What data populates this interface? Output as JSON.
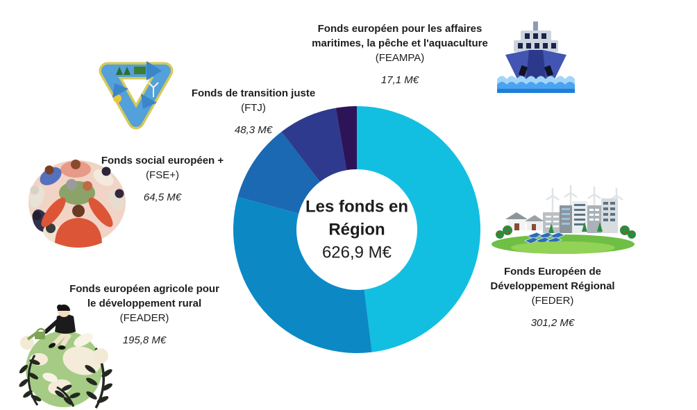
{
  "meta": {
    "background_color": "#ffffff",
    "text_color": "#1d1d1d"
  },
  "chart_data": {
    "type": "pie",
    "subtype": "donut",
    "title": "Les fonds en Région",
    "center_title": "Les fonds en\nRégion",
    "center_total": "626,9 M€",
    "total_value": 626.9,
    "unit": "M€",
    "start_angle_deg": 0,
    "direction": "clockwise",
    "segments": [
      {
        "id": "feder",
        "label": "Fonds Européen de\nDéveloppement Régional",
        "acronym": "(FEDER)",
        "value": 301.2,
        "amount_label": "301,2 M€",
        "color": "#12bfe1",
        "icon": "city-icon"
      },
      {
        "id": "feader",
        "label": "Fonds européen agricole pour\nle développement rural",
        "acronym": "(FEADER)",
        "value": 195.8,
        "amount_label": "195,8 M€",
        "color": "#0c89c5",
        "icon": "globe-person-icon"
      },
      {
        "id": "fse",
        "label": "Fonds social européen +",
        "acronym": "(FSE+)",
        "value": 64.5,
        "amount_label": "64,5 M€",
        "color": "#1a69b2",
        "icon": "people-circle-icon"
      },
      {
        "id": "ftj",
        "label": "Fonds de transition juste",
        "acronym": "(FTJ)",
        "value": 48.3,
        "amount_label": "48,3 M€",
        "color": "#2e3a8d",
        "icon": "recycle-icon"
      },
      {
        "id": "feampa",
        "label": "Fonds européen pour les affaires\nmaritimes, la pêche et l'aquaculture",
        "acronym": "(FEAMPA)",
        "value": 17.1,
        "amount_label": "17,1 M€",
        "color": "#2d1458",
        "icon": "ship-icon"
      }
    ]
  }
}
